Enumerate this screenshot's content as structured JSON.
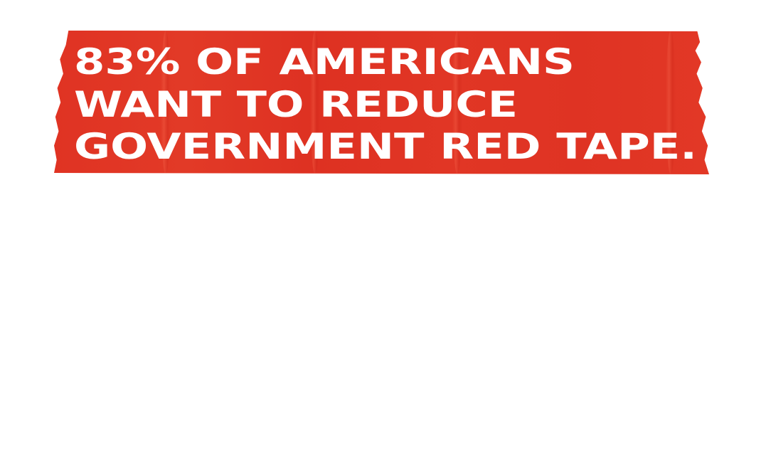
{
  "banner": {
    "color": "#df3323",
    "text_color": "#ffffff",
    "lines": [
      "83% OF AMERICANS",
      "WANT TO REDUCE",
      "GOVERNMENT RED TAPE."
    ]
  }
}
